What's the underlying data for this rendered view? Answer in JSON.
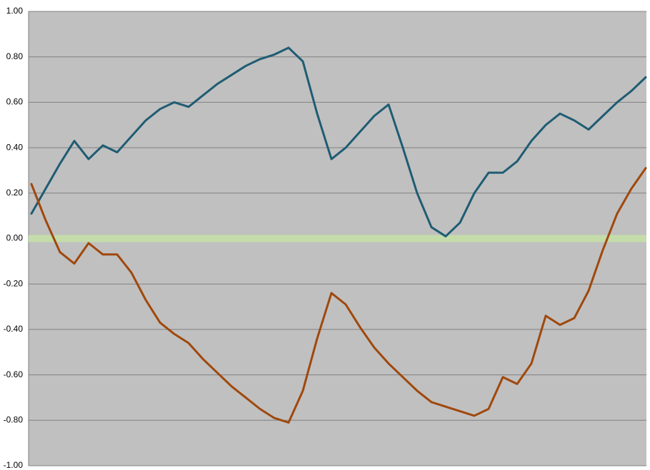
{
  "chart_data": {
    "type": "line",
    "series": [
      {
        "color": "#1f5c73",
        "values": [
          0.11,
          0.22,
          0.33,
          0.43,
          0.35,
          0.41,
          0.38,
          0.45,
          0.52,
          0.57,
          0.6,
          0.58,
          0.63,
          0.68,
          0.72,
          0.76,
          0.79,
          0.81,
          0.84,
          0.78,
          0.55,
          0.35,
          0.4,
          0.47,
          0.54,
          0.59,
          0.4,
          0.2,
          0.05,
          0.01,
          0.07,
          0.2,
          0.29,
          0.29,
          0.34,
          0.43,
          0.5,
          0.55,
          0.52,
          0.48,
          0.54,
          0.6,
          0.65,
          0.71
        ]
      },
      {
        "color": "#a0480c",
        "values": [
          0.24,
          0.08,
          -0.06,
          -0.11,
          -0.02,
          -0.07,
          -0.07,
          -0.15,
          -0.27,
          -0.37,
          -0.42,
          -0.46,
          -0.53,
          -0.59,
          -0.65,
          -0.7,
          -0.75,
          -0.79,
          -0.81,
          -0.67,
          -0.44,
          -0.24,
          -0.29,
          -0.39,
          -0.48,
          -0.55,
          -0.61,
          -0.67,
          -0.72,
          -0.74,
          -0.76,
          -0.78,
          -0.75,
          -0.61,
          -0.64,
          -0.55,
          -0.34,
          -0.38,
          -0.35,
          -0.23,
          -0.05,
          0.11,
          0.22,
          0.31
        ]
      }
    ],
    "ylim": [
      -1,
      1
    ],
    "yticks": [
      {
        "value": -1,
        "label": "-1.00"
      },
      {
        "value": -0.8,
        "label": "-0.80"
      },
      {
        "value": -0.6,
        "label": "-0.60"
      },
      {
        "value": -0.4,
        "label": "-0.40"
      },
      {
        "value": -0.2,
        "label": "-0.20"
      },
      {
        "value": 0,
        "label": "0.00"
      },
      {
        "value": 0.2,
        "label": "0.20"
      },
      {
        "value": 0.4,
        "label": "0.40"
      },
      {
        "value": 0.6,
        "label": "0.60"
      },
      {
        "value": 0.8,
        "label": "0.80"
      },
      {
        "value": 1,
        "label": "1.00"
      }
    ],
    "grid": true,
    "plot_background": "#c0c0c0",
    "zero_line_color": "#c4dcaa"
  }
}
